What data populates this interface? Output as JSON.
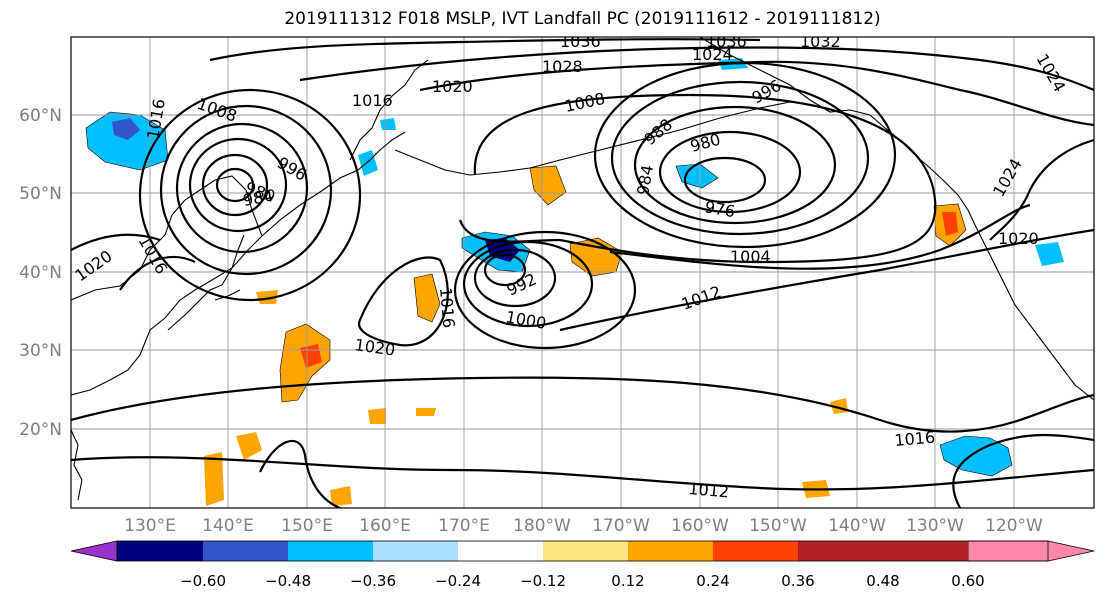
{
  "title": "2019111312 F018 MSLP, IVT Landfall PC (2019111612 - 2019111812)",
  "lat_labels": [
    "20°N",
    "30°N",
    "40°N",
    "50°N",
    "60°N"
  ],
  "lon_labels": [
    "130°E",
    "140°E",
    "150°E",
    "160°E",
    "170°E",
    "180°W",
    "170°W",
    "160°W",
    "150°W",
    "140°W",
    "130°W",
    "120°W"
  ],
  "isobar_labels": [
    {
      "text": "1036",
      "name": "isobar-label-1036-a"
    },
    {
      "text": "1036",
      "name": "isobar-label-1036-b"
    },
    {
      "text": "1032",
      "name": "isobar-label-1032"
    },
    {
      "text": "1028",
      "name": "isobar-label-1028"
    },
    {
      "text": "1024",
      "name": "isobar-label-1024-a"
    },
    {
      "text": "1024",
      "name": "isobar-label-1024-b"
    },
    {
      "text": "1024",
      "name": "isobar-label-1024-c"
    },
    {
      "text": "1020",
      "name": "isobar-label-1020-a"
    },
    {
      "text": "1020",
      "name": "isobar-label-1020-b"
    },
    {
      "text": "1020",
      "name": "isobar-label-1020-c"
    },
    {
      "text": "1020",
      "name": "isobar-label-1020-d"
    },
    {
      "text": "1016",
      "name": "isobar-label-1016-a"
    },
    {
      "text": "1016",
      "name": "isobar-label-1016-b"
    },
    {
      "text": "1016",
      "name": "isobar-label-1016-c"
    },
    {
      "text": "1016",
      "name": "isobar-label-1016-d"
    },
    {
      "text": "1016",
      "name": "isobar-label-1016-e"
    },
    {
      "text": "1012",
      "name": "isobar-label-1012-a"
    },
    {
      "text": "1012",
      "name": "isobar-label-1012-b"
    },
    {
      "text": "1008",
      "name": "isobar-label-1008-a"
    },
    {
      "text": "1008",
      "name": "isobar-label-1008-b"
    },
    {
      "text": "1004",
      "name": "isobar-label-1004"
    },
    {
      "text": "1000",
      "name": "isobar-label-1000"
    },
    {
      "text": "996",
      "name": "isobar-label-996-a"
    },
    {
      "text": "996",
      "name": "isobar-label-996-b"
    },
    {
      "text": "992",
      "name": "isobar-label-992"
    },
    {
      "text": "988",
      "name": "isobar-label-988"
    },
    {
      "text": "984",
      "name": "isobar-label-984-a"
    },
    {
      "text": "984",
      "name": "isobar-label-984-b"
    },
    {
      "text": "980",
      "name": "isobar-label-980-a"
    },
    {
      "text": "980",
      "name": "isobar-label-980-b"
    },
    {
      "text": "976",
      "name": "isobar-label-976"
    }
  ],
  "colorbar": {
    "colors": [
      "#9933cc",
      "#000080",
      "#3355cc",
      "#00bfff",
      "#aadfff",
      "#ffffff",
      "#ffe680",
      "#ffa500",
      "#ff4000",
      "#b22222",
      "#ff88aa"
    ],
    "ticks": [
      "−0.60",
      "−0.48",
      "−0.36",
      "−0.24",
      "−0.12",
      "0.12",
      "0.24",
      "0.36",
      "0.48",
      "0.60"
    ]
  },
  "ivt_colors": {
    "neg_light": "#aadfff",
    "neg_mid": "#00bfff",
    "neg_strong": "#3355cc",
    "neg_max": "#000080",
    "pos_light": "#ffe680",
    "pos_mid": "#ffa500",
    "pos_strong": "#ff4000"
  }
}
